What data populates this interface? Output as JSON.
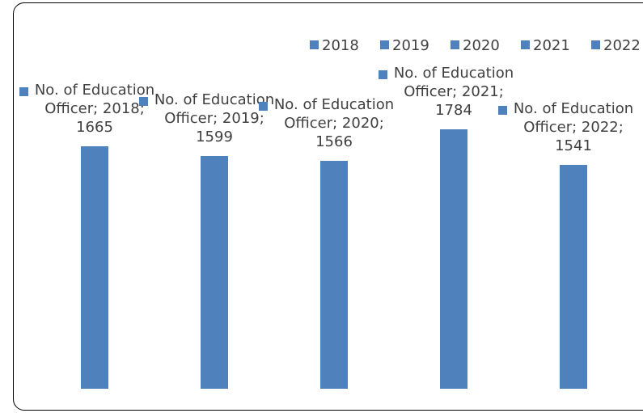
{
  "chart_data": {
    "type": "bar",
    "categories": [
      "2018",
      "2019",
      "2020",
      "2021",
      "2022"
    ],
    "values": [
      1665,
      1599,
      1566,
      1784,
      1541
    ],
    "value_labels": [
      "No. of Education Officer; 2018; 1665",
      "No. of Education Officer; 2019; 1599",
      "No. of Education Officer; 2020; 1566",
      "No. of Education Officer; 2021; 1784",
      "No. of Education Officer; 2022; 1541"
    ],
    "color": "#4f81bd",
    "legend": "top-right"
  }
}
